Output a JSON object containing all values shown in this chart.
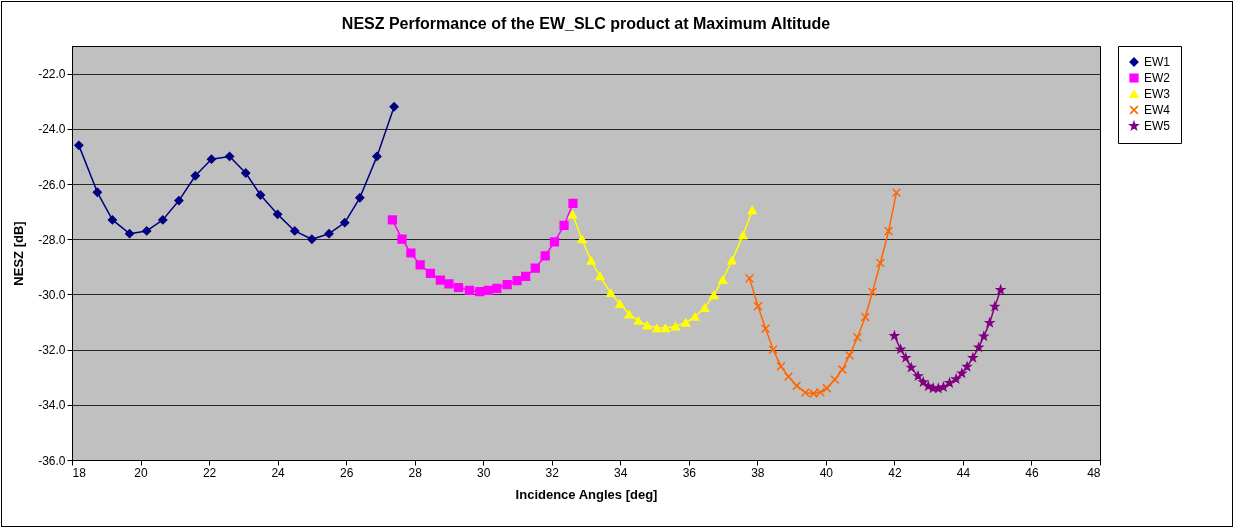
{
  "chart_data": {
    "type": "line",
    "title": "NESZ Performance of the EW_SLC product at Maximum Altitude",
    "xlabel": "Incidence Angles [deg]",
    "ylabel": "NESZ [dB]",
    "xlim": [
      18,
      48
    ],
    "xticks": [
      18,
      20,
      22,
      24,
      26,
      28,
      30,
      32,
      34,
      36,
      38,
      40,
      42,
      44,
      46,
      48
    ],
    "ylim": [
      -36,
      -21
    ],
    "yticks": [
      {
        "value": -36,
        "label": "-36.0"
      },
      {
        "value": -34,
        "label": "-34.0"
      },
      {
        "value": -32,
        "label": "-32.0"
      },
      {
        "value": -30,
        "label": "-30.0"
      },
      {
        "value": -28,
        "label": "-28.0"
      },
      {
        "value": -26,
        "label": "-26.0"
      },
      {
        "value": -24,
        "label": "-24.0"
      },
      {
        "value": -22,
        "label": "-22.0"
      }
    ],
    "grid": "y",
    "legend": "right",
    "series": [
      {
        "name": "EW1",
        "color": "#000080",
        "marker": "diamond",
        "x": [
          18.2,
          18.74,
          19.18,
          19.68,
          20.18,
          20.65,
          21.12,
          21.6,
          22.07,
          22.6,
          23.07,
          23.5,
          24.0,
          24.5,
          25.0,
          25.5,
          25.96,
          26.4,
          26.9,
          27.4
        ],
        "values": [
          -24.6,
          -26.3,
          -27.3,
          -27.8,
          -27.7,
          -27.3,
          -26.6,
          -25.7,
          -25.1,
          -25.0,
          -25.6,
          -26.4,
          -27.1,
          -27.7,
          -28.0,
          -27.8,
          -27.4,
          -26.5,
          -25.0,
          -23.2
        ]
      },
      {
        "name": "EW2",
        "color": "#ff00ff",
        "marker": "square",
        "x": [
          27.35,
          27.63,
          27.89,
          28.16,
          28.46,
          28.75,
          29.0,
          29.28,
          29.6,
          29.9,
          30.15,
          30.4,
          30.7,
          30.99,
          31.24,
          31.52,
          31.81,
          32.08,
          32.36,
          32.62
        ],
        "values": [
          -27.3,
          -28.0,
          -28.5,
          -28.93,
          -29.24,
          -29.48,
          -29.62,
          -29.75,
          -29.85,
          -29.9,
          -29.85,
          -29.78,
          -29.65,
          -29.5,
          -29.35,
          -29.05,
          -28.6,
          -28.1,
          -27.5,
          -26.7
        ]
      },
      {
        "name": "EW3",
        "color": "#ffff00",
        "marker": "triangle",
        "x": [
          32.61,
          32.88,
          33.15,
          33.41,
          33.72,
          33.99,
          34.26,
          34.53,
          34.78,
          35.07,
          35.32,
          35.61,
          35.91,
          36.18,
          36.46,
          36.73,
          36.99,
          37.26,
          37.58,
          37.85
        ],
        "values": [
          -27.1,
          -28.0,
          -28.78,
          -29.34,
          -29.95,
          -30.34,
          -30.72,
          -30.95,
          -31.12,
          -31.22,
          -31.22,
          -31.16,
          -31.02,
          -30.81,
          -30.49,
          -30.03,
          -29.47,
          -28.77,
          -27.86,
          -26.95
        ]
      },
      {
        "name": "EW4",
        "color": "#ff6600",
        "marker": "cross",
        "x": [
          37.77,
          38.02,
          38.24,
          38.46,
          38.69,
          38.91,
          39.15,
          39.4,
          39.64,
          39.84,
          40.03,
          40.26,
          40.48,
          40.69,
          40.92,
          41.15,
          41.36,
          41.59,
          41.83,
          42.06
        ],
        "values": [
          -29.42,
          -30.43,
          -31.24,
          -32.0,
          -32.61,
          -32.98,
          -33.31,
          -33.56,
          -33.59,
          -33.55,
          -33.4,
          -33.09,
          -32.72,
          -32.21,
          -31.56,
          -30.82,
          -29.91,
          -28.86,
          -27.71,
          -26.31
        ]
      },
      {
        "name": "EW5",
        "color": "#800080",
        "marker": "star",
        "x": [
          42.0,
          42.18,
          42.33,
          42.49,
          42.69,
          42.84,
          42.99,
          43.13,
          43.28,
          43.43,
          43.61,
          43.8,
          43.97,
          44.12,
          44.29,
          44.46,
          44.61,
          44.78,
          44.93,
          45.1
        ],
        "values": [
          -31.5,
          -31.99,
          -32.3,
          -32.65,
          -32.96,
          -33.18,
          -33.33,
          -33.4,
          -33.41,
          -33.36,
          -33.21,
          -33.07,
          -32.86,
          -32.62,
          -32.3,
          -31.92,
          -31.52,
          -31.03,
          -30.44,
          -29.84
        ]
      }
    ]
  }
}
